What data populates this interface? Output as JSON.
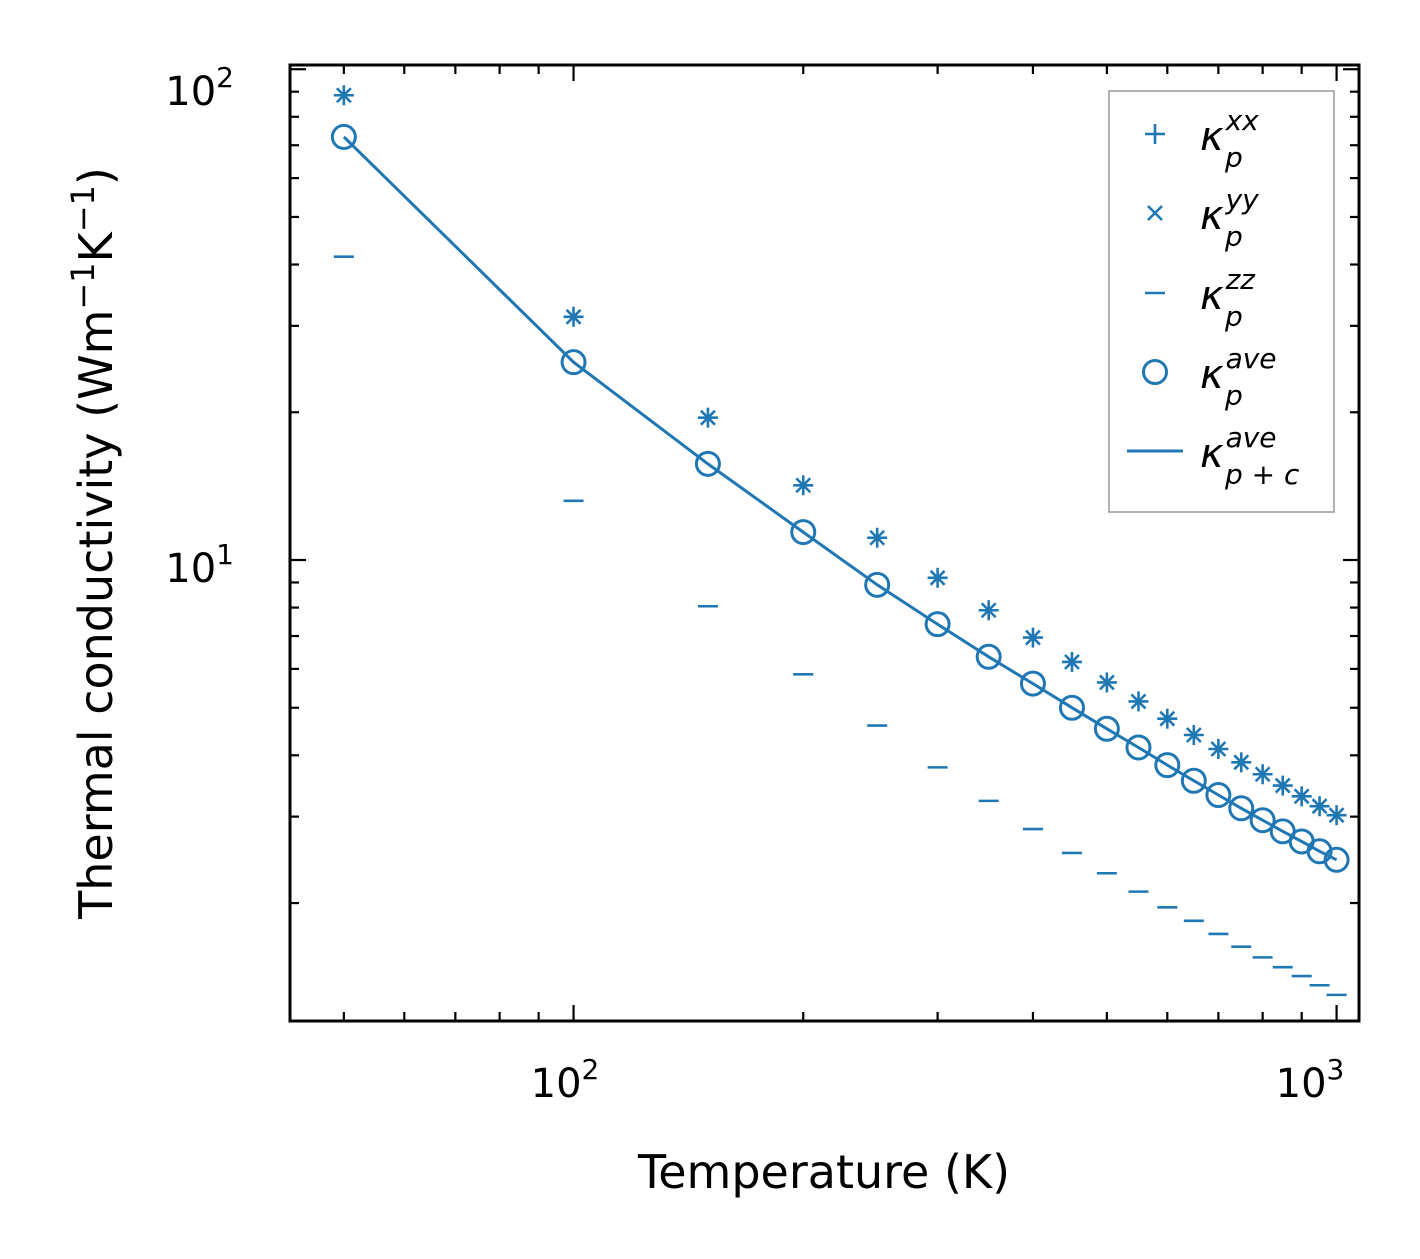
{
  "chart_data": {
    "type": "scatter",
    "xscale": "log",
    "yscale": "log",
    "xlabel": "Temperature (K)",
    "ylabel_main": "Thermal conductivity (Wm",
    "ylabel_exp1": "−1",
    "ylabel_mid": "K",
    "ylabel_exp2": "−1",
    "ylabel_end": ")",
    "xlim": [
      42.5,
      1070
    ],
    "ylim": [
      1.15,
      102
    ],
    "x_ticks": [
      {
        "base": "10",
        "exp": "2",
        "value": 100
      },
      {
        "base": "10",
        "exp": "3",
        "value": 1000
      }
    ],
    "y_ticks": [
      {
        "base": "10",
        "exp": "1",
        "value": 10
      },
      {
        "base": "10",
        "exp": "2",
        "value": 100
      }
    ],
    "colors": {
      "series": "#1f77b4",
      "axes": "#000000",
      "legend_border": "#999999"
    },
    "x": [
      50,
      100,
      150,
      200,
      250,
      300,
      350,
      400,
      450,
      500,
      550,
      600,
      650,
      700,
      750,
      800,
      850,
      900,
      950,
      1000
    ],
    "series": [
      {
        "name": "kappa_p_xx",
        "marker": "plus",
        "values": [
          88.5,
          31.3,
          19.5,
          14.2,
          11.1,
          9.2,
          7.9,
          6.95,
          6.2,
          5.63,
          5.15,
          4.75,
          4.4,
          4.12,
          3.87,
          3.66,
          3.47,
          3.3,
          3.15,
          3.02
        ]
      },
      {
        "name": "kappa_p_yy",
        "marker": "x",
        "values": [
          88.5,
          31.3,
          19.5,
          14.2,
          11.1,
          9.2,
          7.9,
          6.95,
          6.2,
          5.63,
          5.15,
          4.75,
          4.4,
          4.12,
          3.87,
          3.66,
          3.47,
          3.3,
          3.15,
          3.02
        ]
      },
      {
        "name": "kappa_p_zz",
        "marker": "hline",
        "values": [
          41.5,
          13.2,
          8.05,
          5.85,
          4.6,
          3.78,
          3.23,
          2.83,
          2.53,
          2.3,
          2.11,
          1.96,
          1.84,
          1.73,
          1.63,
          1.55,
          1.48,
          1.42,
          1.36,
          1.3
        ]
      },
      {
        "name": "kappa_p_ave",
        "marker": "circle",
        "values": [
          72.8,
          25.3,
          15.7,
          11.4,
          8.9,
          7.4,
          6.35,
          5.6,
          5.0,
          4.53,
          4.15,
          3.82,
          3.55,
          3.32,
          3.12,
          2.95,
          2.8,
          2.67,
          2.55,
          2.45
        ]
      },
      {
        "name": "kappa_p_c_ave",
        "marker": "line",
        "values": [
          72.8,
          25.3,
          15.7,
          11.4,
          8.9,
          7.4,
          6.35,
          5.6,
          5.0,
          4.53,
          4.15,
          3.82,
          3.55,
          3.32,
          3.12,
          2.95,
          2.8,
          2.67,
          2.55,
          2.45
        ]
      }
    ],
    "legend": {
      "placement": "top-right",
      "entries": [
        {
          "marker": "plus",
          "base": "κ",
          "sub": "p",
          "sup": "xx"
        },
        {
          "marker": "x",
          "base": "κ",
          "sub": "p",
          "sup": "yy"
        },
        {
          "marker": "hline",
          "base": "κ",
          "sub": "p",
          "sup": "zz"
        },
        {
          "marker": "circle",
          "base": "κ",
          "sub": "p",
          "sup": "ave"
        },
        {
          "marker": "line",
          "base": "κ",
          "sub": "p + c",
          "sup": "ave"
        }
      ]
    },
    "grid": false
  }
}
